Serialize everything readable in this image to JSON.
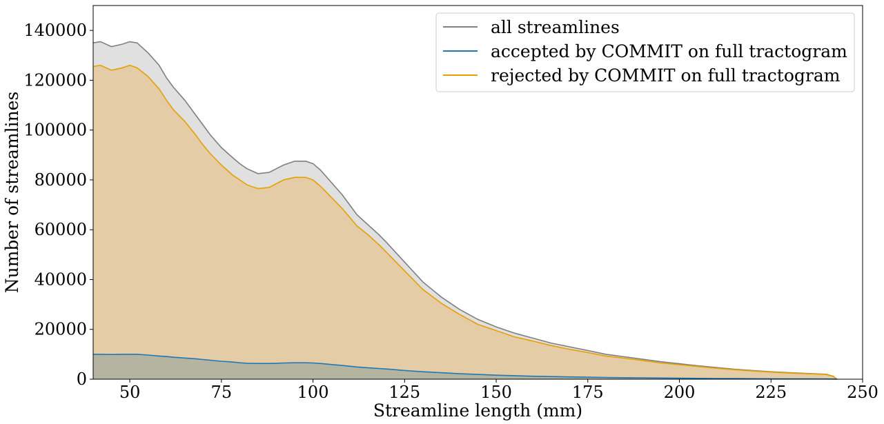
{
  "chart_data": {
    "type": "area",
    "xlabel": "Streamline length (mm)",
    "ylabel": "Number of streamlines",
    "xlim": [
      40,
      250
    ],
    "ylim": [
      0,
      150000
    ],
    "xticks": [
      50,
      75,
      100,
      125,
      150,
      175,
      200,
      225,
      250
    ],
    "yticks": [
      0,
      20000,
      40000,
      60000,
      80000,
      100000,
      120000,
      140000
    ],
    "legend_position": "top-right",
    "grid": false,
    "x": [
      40,
      42,
      45,
      48,
      50,
      52,
      55,
      58,
      60,
      62,
      65,
      68,
      70,
      72,
      75,
      78,
      80,
      82,
      85,
      88,
      90,
      92,
      95,
      98,
      100,
      102,
      105,
      108,
      110,
      112,
      115,
      118,
      120,
      125,
      130,
      135,
      140,
      145,
      150,
      155,
      160,
      165,
      170,
      175,
      180,
      185,
      190,
      195,
      200,
      205,
      210,
      215,
      220,
      225,
      230,
      235,
      240,
      242,
      243
    ],
    "series": [
      {
        "name": "all streamlines",
        "color": "#7f7f7f",
        "fill": "#e0e0e0",
        "values": [
          135000,
          135500,
          133500,
          134500,
          135500,
          135000,
          131000,
          126000,
          121000,
          117000,
          112000,
          106000,
          102000,
          98000,
          93000,
          89000,
          86500,
          84500,
          82500,
          83000,
          84500,
          86000,
          87500,
          87500,
          86500,
          84000,
          79000,
          74000,
          70000,
          66000,
          62000,
          58000,
          55000,
          47000,
          39000,
          33000,
          28000,
          24000,
          21000,
          18500,
          16500,
          14500,
          13000,
          11500,
          10000,
          9000,
          8000,
          7000,
          6200,
          5400,
          4700,
          4000,
          3500,
          3000,
          2600,
          2300,
          2000,
          1200,
          0
        ]
      },
      {
        "name": "accepted by COMMIT on full tractogram",
        "color": "#1f77b4",
        "fill": "#b4b4a0",
        "values": [
          10000,
          10000,
          9900,
          10000,
          10000,
          10000,
          9700,
          9300,
          9100,
          8800,
          8500,
          8200,
          7900,
          7600,
          7200,
          6900,
          6600,
          6400,
          6300,
          6300,
          6400,
          6500,
          6600,
          6600,
          6500,
          6300,
          5900,
          5500,
          5200,
          4900,
          4600,
          4300,
          4100,
          3500,
          3000,
          2600,
          2200,
          1900,
          1600,
          1400,
          1200,
          1050,
          900,
          800,
          700,
          620,
          540,
          470,
          400,
          340,
          290,
          240,
          200,
          160,
          130,
          100,
          80,
          50,
          0
        ]
      },
      {
        "name": "rejected by COMMIT on full tractogram",
        "color": "#e69f00",
        "fill": "#e3cca6",
        "values": [
          125500,
          126000,
          124000,
          125000,
          126000,
          125000,
          121500,
          116500,
          112000,
          108000,
          103500,
          98000,
          94000,
          90500,
          86000,
          82000,
          80000,
          78000,
          76500,
          77000,
          78500,
          80000,
          81000,
          81000,
          80000,
          77500,
          73000,
          68500,
          65000,
          61500,
          58000,
          54000,
          51000,
          43500,
          36000,
          30500,
          26000,
          22000,
          19500,
          17000,
          15300,
          13500,
          12000,
          10700,
          9300,
          8400,
          7500,
          6500,
          5800,
          5100,
          4400,
          3800,
          3300,
          2850,
          2450,
          2200,
          1900,
          1150,
          0
        ]
      }
    ]
  }
}
